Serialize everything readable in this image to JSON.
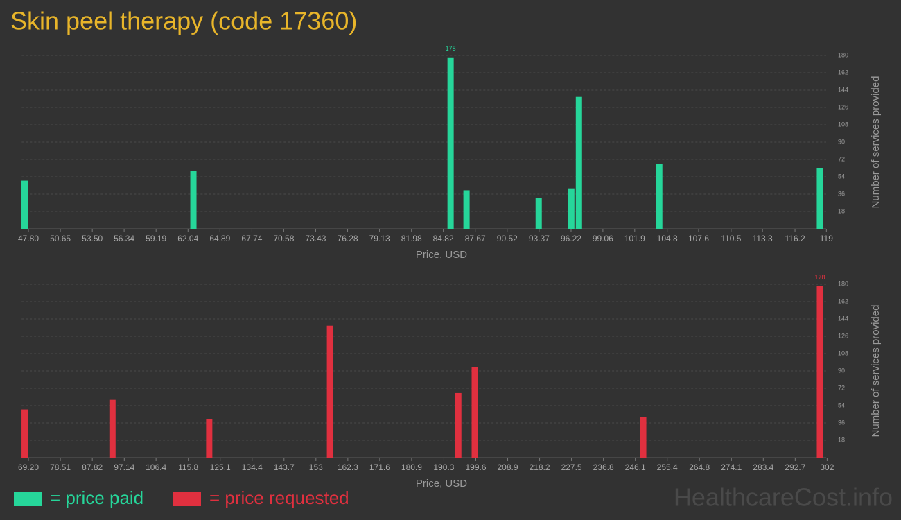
{
  "title": "Skin peel therapy (code 17360)",
  "watermark": "HealthcareCost.info",
  "chart_data": [
    {
      "type": "bar",
      "x": [
        47.46,
        62.52,
        85.47,
        86.89,
        93.33,
        96.24,
        96.92,
        104.09,
        118.42
      ],
      "series": [
        {
          "name": "= price paid",
          "color": "#26d69a",
          "values": [
            50,
            60,
            178,
            40,
            32,
            42,
            137,
            67,
            63
          ]
        }
      ],
      "xlim": [
        47.2,
        119.4
      ],
      "xticks": [
        {
          "value": 47.8,
          "label": "47.80"
        },
        50.65,
        {
          "value": 53.5,
          "label": "53.50"
        },
        56.34,
        59.19,
        62.04,
        64.89,
        67.74,
        70.58,
        73.43,
        76.28,
        79.13,
        81.98,
        84.82,
        87.67,
        90.52,
        93.37,
        96.22,
        99.06,
        101.9,
        104.8,
        107.6,
        110.5,
        113.3,
        116.2,
        119
      ],
      "ylim": [
        0,
        180
      ],
      "yticks": [
        18,
        36,
        54,
        72,
        90,
        108,
        126,
        144,
        162,
        180
      ],
      "xlabel": "Price, USD",
      "ylabel": "Number of services provided",
      "grid": true
    },
    {
      "type": "bar",
      "x": [
        68.1,
        93.7,
        121.9,
        157.1,
        194.5,
        199.3,
        248.4,
        299.9
      ],
      "series": [
        {
          "name": "= price requested",
          "color": "#e0303f",
          "values": [
            50,
            60,
            40,
            137,
            67,
            94,
            42,
            178
          ]
        }
      ],
      "xlim": [
        67.2,
        303.5
      ],
      "xticks": [
        {
          "value": 69.2,
          "label": "69.20"
        },
        78.51,
        87.82,
        97.14,
        106.4,
        115.8,
        125.1,
        134.4,
        143.7,
        153,
        162.3,
        171.6,
        180.9,
        190.3,
        199.6,
        208.9,
        218.2,
        227.5,
        236.8,
        246.1,
        255.4,
        264.8,
        274.1,
        283.4,
        292.7,
        302
      ],
      "ylim": [
        0,
        180
      ],
      "yticks": [
        18,
        36,
        54,
        72,
        90,
        108,
        126,
        144,
        162,
        180
      ],
      "xlabel": "Price, USD",
      "ylabel": "Number of services provided",
      "grid": true
    }
  ]
}
